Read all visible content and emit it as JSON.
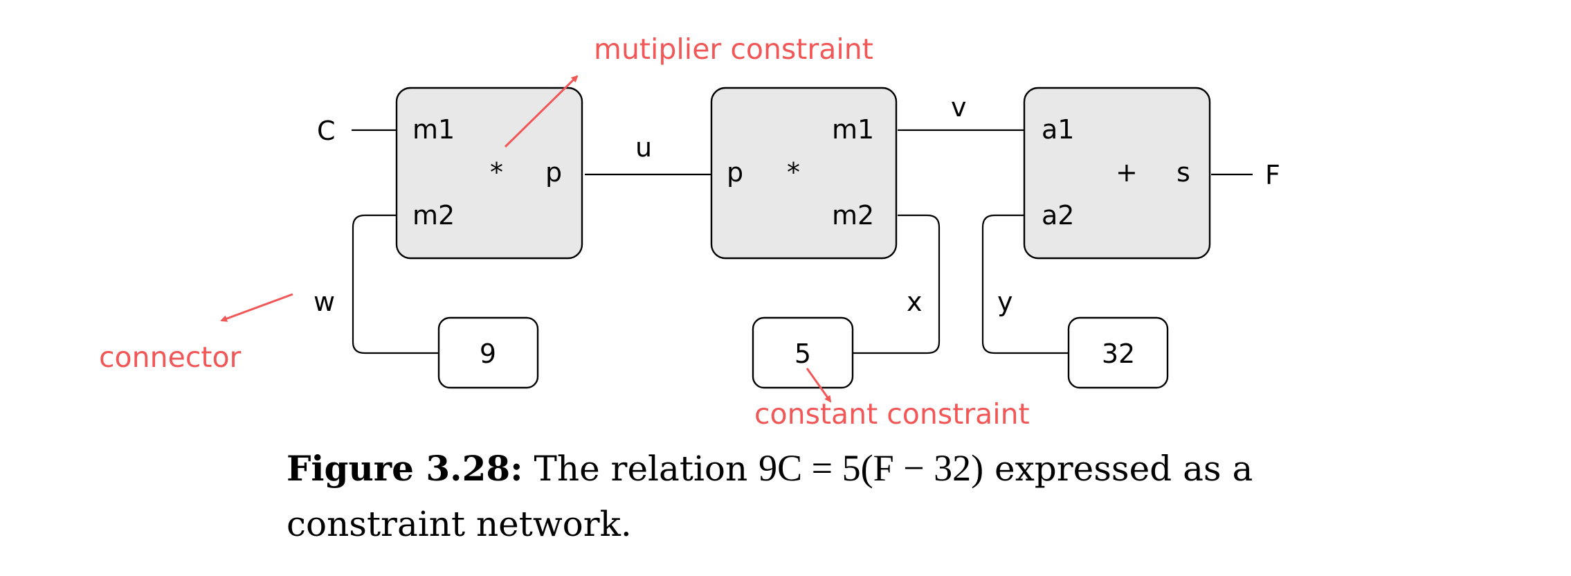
{
  "diagram": {
    "annotations": {
      "multiplier": "mutiplier constraint",
      "connector": "connector",
      "constant": "constant constraint"
    },
    "multiplier1": {
      "port_m1": "m1",
      "port_m2": "m2",
      "operator": "*",
      "port_p": "p"
    },
    "multiplier2": {
      "port_p": "p",
      "operator": "*",
      "port_m1": "m1",
      "port_m2": "m2"
    },
    "adder": {
      "port_a1": "a1",
      "port_a2": "a2",
      "operator": "+",
      "port_s": "s"
    },
    "constants": {
      "c9": "9",
      "c5": "5",
      "c32": "32"
    },
    "connectors": {
      "C": "C",
      "F": "F",
      "u": "u",
      "v": "v",
      "w": "w",
      "x": "x",
      "y": "y"
    },
    "colors": {
      "annotation": "#f25757",
      "box_fill": "#e8e8e8"
    }
  },
  "caption": {
    "figure_number": "Figure 3.28:",
    "text_before": "The relation",
    "equation": "9C = 5(F − 32)",
    "text_after": "expressed as a constraint network."
  }
}
